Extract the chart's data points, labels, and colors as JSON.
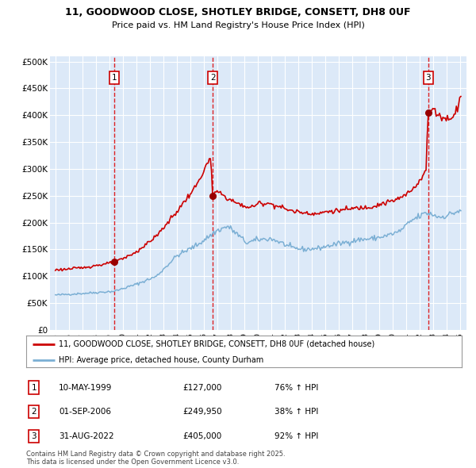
{
  "title": "11, GOODWOOD CLOSE, SHOTLEY BRIDGE, CONSETT, DH8 0UF",
  "subtitle": "Price paid vs. HM Land Registry's House Price Index (HPI)",
  "background_color": "#ffffff",
  "plot_bg_color": "#dce9f8",
  "grid_color": "#ffffff",
  "sale_color": "#cc0000",
  "hpi_color": "#7bafd4",
  "sale_marker_color": "#990000",
  "dashed_line_color": "#dd0000",
  "legend_label_sale": "11, GOODWOOD CLOSE, SHOTLEY BRIDGE, CONSETT, DH8 0UF (detached house)",
  "legend_label_hpi": "HPI: Average price, detached house, County Durham",
  "sale_annotations": [
    {
      "label": "1",
      "date": "10-MAY-1999",
      "price": "£127,000",
      "change": "76% ↑ HPI"
    },
    {
      "label": "2",
      "date": "01-SEP-2006",
      "price": "£249,950",
      "change": "38% ↑ HPI"
    },
    {
      "label": "3",
      "date": "31-AUG-2022",
      "price": "£405,000",
      "change": "92% ↑ HPI"
    }
  ],
  "footer": "Contains HM Land Registry data © Crown copyright and database right 2025.\nThis data is licensed under the Open Government Licence v3.0.",
  "ylim": [
    0,
    510000
  ],
  "yticks": [
    0,
    50000,
    100000,
    150000,
    200000,
    250000,
    300000,
    350000,
    400000,
    450000,
    500000
  ],
  "ytick_labels": [
    "£0",
    "£50K",
    "£100K",
    "£150K",
    "£200K",
    "£250K",
    "£300K",
    "£350K",
    "£400K",
    "£450K",
    "£500K"
  ],
  "sale_years_decimal": [
    1999.36,
    2006.67,
    2022.66
  ],
  "sale_prices": [
    127000,
    249950,
    405000
  ],
  "box_labels": [
    "1",
    "2",
    "3"
  ]
}
